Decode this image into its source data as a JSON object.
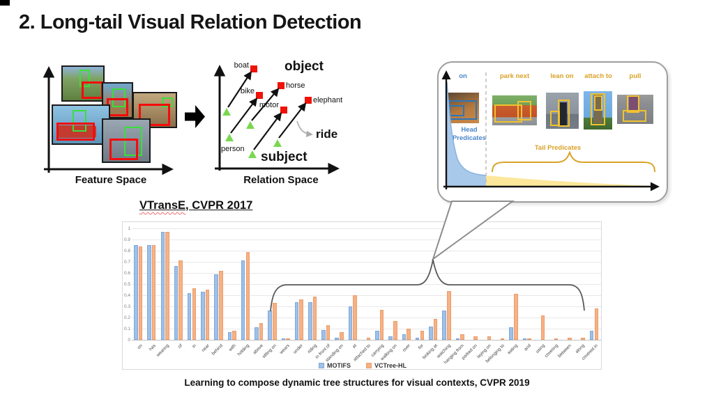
{
  "slide": {
    "title": "2. Long-tail Visual Relation Detection",
    "caption": "Learning to compose dynamic tree structures for visual contexts, CVPR 2019"
  },
  "feature_space": {
    "label": "Feature Space"
  },
  "relation_space": {
    "label": "Relation Space",
    "object_text": "object",
    "subject_text": "subject",
    "ride_text": "ride",
    "person_label": "person",
    "point_labels": [
      "boat",
      "bike",
      "horse",
      "motor",
      "elephant"
    ]
  },
  "citation": {
    "main": "VTransE",
    "rest": ", CVPR 2017"
  },
  "callout": {
    "columns": [
      {
        "label": "on",
        "color": "#4A86C8"
      },
      {
        "label": "park next",
        "color": "#D9A226"
      },
      {
        "label": "lean on",
        "color": "#D9A226"
      },
      {
        "label": "attach to",
        "color": "#D9A226"
      },
      {
        "label": "pull",
        "color": "#D9A226"
      }
    ],
    "head_label_line1": "Head",
    "head_label_line2": "Predicates",
    "tail_label": "Tail Predicates",
    "head_area_color": "#A9C9EA",
    "tail_area_color": "#FCE79B"
  },
  "chart_data": {
    "type": "bar",
    "title": "",
    "xlabel": "",
    "ylabel": "",
    "ylim": [
      0,
      1
    ],
    "grid": true,
    "legend_position": "bottom",
    "yticks": [
      "0",
      "0.1",
      "0.2",
      "0.3",
      "0.4",
      "0.5",
      "0.6",
      "0.7",
      "0.8",
      "0.9",
      "1"
    ],
    "categories": [
      "on",
      "has",
      "wearing",
      "of",
      "in",
      "near",
      "behind",
      "with",
      "holding",
      "above",
      "sitting on",
      "wears",
      "under",
      "riding",
      "in front of",
      "standing on",
      "at",
      "attached to",
      "carrying",
      "walking on",
      "over",
      "for",
      "looking at",
      "watching",
      "hanging from",
      "parked on",
      "laying on",
      "belonging to",
      "eating",
      "and",
      "using",
      "covering",
      "between",
      "along",
      "covered in"
    ],
    "series": [
      {
        "name": "MOTIFS",
        "fill": "#9FC0E8",
        "border": "#7FA8D9",
        "values": [
          0.85,
          0.85,
          0.97,
          0.66,
          0.42,
          0.43,
          0.59,
          0.07,
          0.71,
          0.11,
          0.26,
          0.01,
          0.34,
          0.34,
          0.09,
          0.02,
          0.3,
          0.0,
          0.08,
          0.03,
          0.05,
          0.02,
          0.12,
          0.26,
          0.01,
          0.0,
          0.0,
          0.0,
          0.11,
          0.01,
          0.0,
          0.0,
          0.0,
          0.0,
          0.08
        ]
      },
      {
        "name": "VCTree-HL",
        "fill": "#F5B285",
        "border": "#EC9C6C",
        "values": [
          0.84,
          0.85,
          0.97,
          0.71,
          0.46,
          0.45,
          0.62,
          0.08,
          0.79,
          0.15,
          0.33,
          0.01,
          0.36,
          0.39,
          0.13,
          0.07,
          0.4,
          0.02,
          0.27,
          0.17,
          0.1,
          0.08,
          0.19,
          0.44,
          0.05,
          0.03,
          0.03,
          0.01,
          0.41,
          0.01,
          0.22,
          0.01,
          0.02,
          0.02,
          0.28
        ]
      }
    ]
  }
}
